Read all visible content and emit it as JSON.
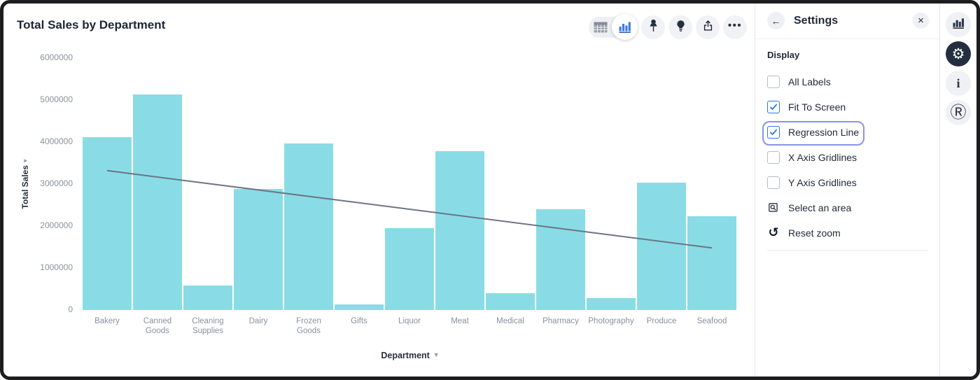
{
  "chart_data": {
    "type": "bar",
    "title": "Total Sales by Department",
    "xlabel": "Department",
    "ylabel": "Total Sales",
    "categories": [
      "Bakery",
      "Canned Goods",
      "Cleaning Supplies",
      "Dairy",
      "Frozen Goods",
      "Gifts",
      "Liquor",
      "Meat",
      "Medical",
      "Pharmacy",
      "Photography",
      "Produce",
      "Seafood"
    ],
    "values": [
      4120000,
      5130000,
      590000,
      2880000,
      3970000,
      140000,
      1950000,
      3780000,
      400000,
      2400000,
      290000,
      3040000,
      2230000
    ],
    "ylim": [
      0,
      6000000
    ],
    "y_ticks": [
      0,
      1000000,
      2000000,
      3000000,
      4000000,
      5000000,
      6000000
    ],
    "grid": false,
    "legend": "none",
    "bar_color": "#89dce6",
    "regression_line": {
      "enabled": true,
      "color": "#6c7584",
      "y_start": 3320000,
      "y_end": 1480000
    }
  },
  "toolbar": {
    "view_toggle": [
      "table-view",
      "bar-chart-view"
    ],
    "active_view": "bar-chart-view",
    "buttons": [
      "pin",
      "lightbulb",
      "share",
      "more-options"
    ]
  },
  "settings_panel": {
    "title": "Settings",
    "back_glyph": "←",
    "close_glyph": "×",
    "section_title": "Display",
    "checkboxes": [
      {
        "label": "All Labels",
        "checked": false,
        "focused": false
      },
      {
        "label": "Fit To Screen",
        "checked": true,
        "focused": false
      },
      {
        "label": "Regression Line",
        "checked": true,
        "focused": true
      },
      {
        "label": "X Axis Gridlines",
        "checked": false,
        "focused": false
      },
      {
        "label": "Y Axis Gridlines",
        "checked": false,
        "focused": false
      }
    ],
    "actions": [
      {
        "label": "Select an area",
        "icon": "select-area-icon"
      },
      {
        "label": "Reset zoom",
        "icon": "reset-zoom-icon",
        "glyph": "↺"
      }
    ]
  },
  "side_rail": {
    "buttons": [
      "visualization",
      "settings",
      "info",
      "r-logo"
    ],
    "active": "settings",
    "gear_glyph": "⚙",
    "info_glyph": "i",
    "r_glyph": "Ⓡ"
  },
  "colors": {
    "bar": "#89dce6",
    "regression_line": "#6c7584",
    "accent_blue": "#2e77e5",
    "focus_ring": "#8a93ea",
    "active_icon_bg": "#232f40",
    "axis_text": "#8a919c"
  }
}
